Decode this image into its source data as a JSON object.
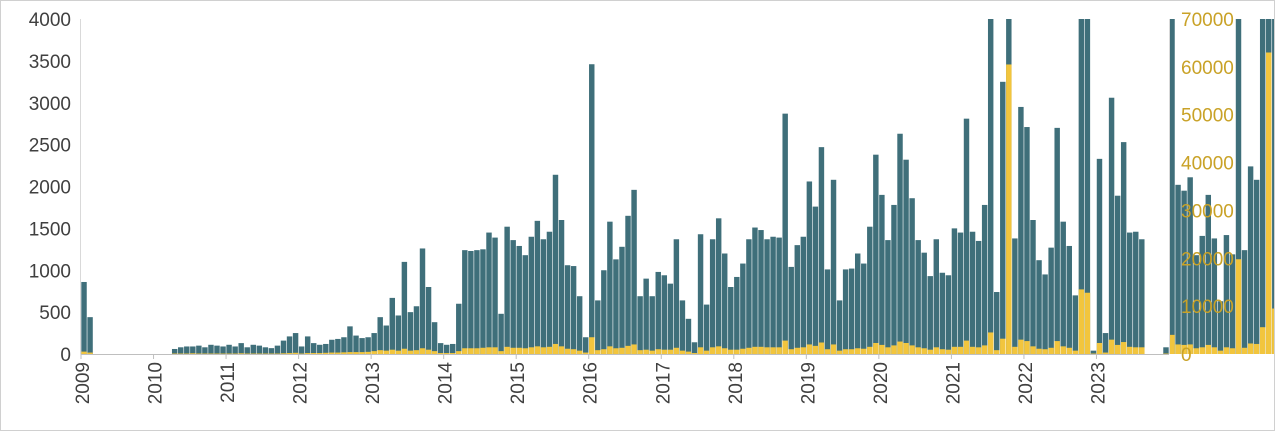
{
  "chart_data": {
    "type": "bar",
    "y_left": {
      "ticks": [
        0,
        500,
        1000,
        1500,
        2000,
        2500,
        3000,
        3500,
        4000
      ],
      "lim": [
        0,
        4000
      ]
    },
    "y_right": {
      "ticks": [
        0,
        10000,
        20000,
        30000,
        40000,
        50000,
        60000,
        70000
      ],
      "lim": [
        0,
        70000
      ]
    },
    "x_ticks": [
      "2009",
      "2010",
      "2011",
      "2012",
      "2013",
      "2014",
      "2015",
      "2016",
      "2017",
      "2018",
      "2019",
      "2020",
      "2021",
      "2022",
      "2023"
    ],
    "x_start_year": 2009,
    "months_per_year": 12,
    "grid": false,
    "colors": {
      "series_left": "#3f6f7a",
      "series_right": "#f2c53d",
      "right_axis_text": "#c9a227"
    },
    "series": [
      {
        "axis": "left",
        "values": [
          860,
          440,
          0,
          0,
          0,
          0,
          0,
          0,
          0,
          0,
          0,
          0,
          0,
          0,
          0,
          60,
          80,
          90,
          90,
          100,
          80,
          110,
          100,
          90,
          110,
          90,
          130,
          80,
          110,
          100,
          80,
          70,
          100,
          160,
          210,
          250,
          90,
          210,
          130,
          110,
          120,
          170,
          180,
          200,
          330,
          220,
          190,
          200,
          250,
          440,
          340,
          670,
          460,
          1100,
          500,
          570,
          1260,
          800,
          380,
          130,
          110,
          120,
          600,
          1240,
          1230,
          1240,
          1250,
          1450,
          1390,
          480,
          1520,
          1360,
          1290,
          1180,
          1400,
          1590,
          1370,
          1460,
          2140,
          1600,
          1060,
          1050,
          690,
          200,
          3460,
          640,
          1000,
          1580,
          1130,
          1280,
          1650,
          1960,
          690,
          900,
          690,
          980,
          940,
          840,
          1370,
          640,
          420,
          140,
          1430,
          590,
          1370,
          1620,
          1200,
          800,
          920,
          1080,
          1370,
          1510,
          1480,
          1370,
          1400,
          1390,
          2870,
          1040,
          1300,
          1400,
          2060,
          1760,
          2470,
          1010,
          2080,
          640,
          1010,
          1020,
          1200,
          1080,
          1520,
          2380,
          1900,
          1360,
          1780,
          2630,
          2320,
          1860,
          1360,
          1210,
          930,
          1370,
          970,
          940,
          1500,
          1450,
          2810,
          1460,
          1350,
          1780,
          4000,
          740,
          3250,
          4000,
          1380,
          2950,
          2710,
          1600,
          1120,
          950,
          1270,
          2700,
          1580,
          1290,
          700,
          4000,
          4000,
          40,
          2330,
          250,
          3060,
          1890,
          2530,
          1450,
          1460,
          1370,
          0,
          0,
          0,
          80,
          4000,
          2020,
          1950,
          2110,
          1180,
          1410,
          1900,
          1380,
          630,
          1420,
          1190,
          4000,
          1240,
          2240,
          2080,
          4000,
          4000,
          4000,
          2870,
          3650,
          560
        ]
      },
      {
        "axis": "right",
        "values": [
          500,
          300,
          0,
          0,
          0,
          0,
          0,
          0,
          0,
          0,
          0,
          0,
          0,
          0,
          0,
          100,
          100,
          100,
          150,
          100,
          100,
          100,
          100,
          100,
          100,
          100,
          150,
          100,
          100,
          100,
          100,
          100,
          100,
          150,
          200,
          250,
          100,
          200,
          200,
          200,
          250,
          300,
          300,
          350,
          400,
          400,
          400,
          450,
          600,
          800,
          700,
          900,
          700,
          1100,
          700,
          800,
          1200,
          900,
          600,
          200,
          200,
          200,
          600,
          1200,
          1200,
          1200,
          1300,
          1400,
          1400,
          600,
          1500,
          1300,
          1300,
          1200,
          1400,
          1600,
          1400,
          1500,
          2100,
          1600,
          1100,
          1000,
          700,
          300,
          3500,
          800,
          1000,
          1600,
          1200,
          1300,
          1700,
          2000,
          800,
          900,
          700,
          1000,
          900,
          900,
          1300,
          700,
          500,
          200,
          1400,
          700,
          1400,
          1600,
          1200,
          900,
          900,
          1100,
          1300,
          1500,
          1500,
          1400,
          1400,
          1400,
          2800,
          1000,
          1300,
          1400,
          2000,
          1700,
          2400,
          1000,
          2000,
          700,
          1000,
          1000,
          1200,
          1100,
          1500,
          2300,
          1900,
          1400,
          1800,
          2600,
          2300,
          1800,
          1400,
          1200,
          900,
          1400,
          1000,
          900,
          1500,
          1500,
          2800,
          1500,
          1400,
          1800,
          4500,
          800,
          3200,
          60500,
          1500,
          3000,
          2700,
          1600,
          1100,
          1000,
          1300,
          2700,
          1600,
          1300,
          700,
          13500,
          12800,
          100,
          2300,
          300,
          3000,
          1900,
          2500,
          1500,
          1400,
          1400,
          0,
          0,
          0,
          100,
          4000,
          2000,
          1900,
          2000,
          1200,
          1400,
          1900,
          1400,
          700,
          1400,
          1200,
          19800,
          1300,
          2200,
          2100,
          5600,
          63000,
          9500,
          2900,
          3600,
          600
        ]
      }
    ]
  }
}
